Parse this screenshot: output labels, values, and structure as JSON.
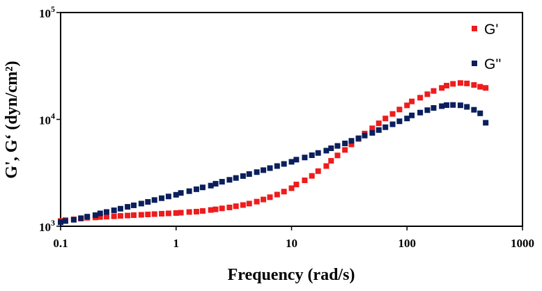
{
  "chart_data": {
    "type": "scatter",
    "title": "",
    "xlabel": "Frequency (rad/s)",
    "ylabel": "G', G‘ (dyn/cm²)",
    "x_scale": "log",
    "y_scale": "log",
    "xlim": [
      0.1,
      1000
    ],
    "ylim": [
      1000,
      100000
    ],
    "x_ticks": [
      "0.1",
      "1",
      "10",
      "100",
      "1000"
    ],
    "y_ticks": [
      {
        "value": 1000,
        "base": "10",
        "exp": "3"
      },
      {
        "value": 10000,
        "base": "10",
        "exp": "4"
      },
      {
        "value": 100000,
        "base": "10",
        "exp": "5"
      }
    ],
    "grid": false,
    "legend_position": "top-right",
    "x": [
      0.1,
      0.11,
      0.13,
      0.15,
      0.17,
      0.2,
      0.22,
      0.25,
      0.29,
      0.33,
      0.38,
      0.43,
      0.5,
      0.57,
      0.65,
      0.75,
      0.86,
      1,
      1.1,
      1.3,
      1.5,
      1.7,
      2,
      2.2,
      2.5,
      2.9,
      3.3,
      3.8,
      4.3,
      5,
      5.7,
      6.5,
      7.5,
      8.6,
      10,
      11,
      13,
      15,
      17,
      20,
      22,
      25,
      29,
      33,
      38,
      43,
      50,
      57,
      65,
      75,
      86,
      100,
      110,
      130,
      150,
      170,
      200,
      220,
      250,
      290,
      330,
      380,
      430,
      480
    ],
    "series": [
      {
        "name": "G'",
        "color": "#ee1c1c",
        "values": [
          1120,
          1140,
          1160,
          1180,
          1200,
          1210,
          1220,
          1230,
          1240,
          1250,
          1260,
          1270,
          1280,
          1290,
          1300,
          1310,
          1320,
          1330,
          1340,
          1360,
          1370,
          1390,
          1420,
          1440,
          1470,
          1500,
          1540,
          1580,
          1630,
          1700,
          1780,
          1870,
          1980,
          2110,
          2270,
          2460,
          2690,
          2960,
          3280,
          3660,
          4100,
          4600,
          5180,
          5830,
          6560,
          7370,
          8250,
          9190,
          10200,
          11250,
          12370,
          13530,
          14730,
          15960,
          17200,
          18460,
          19700,
          20700,
          21500,
          21900,
          21700,
          21000,
          20200,
          19700
        ]
      },
      {
        "name": "G''",
        "color": "#0a1f5c",
        "values": [
          1090,
          1120,
          1150,
          1190,
          1230,
          1270,
          1320,
          1360,
          1410,
          1460,
          1520,
          1570,
          1630,
          1690,
          1760,
          1830,
          1900,
          1970,
          2050,
          2130,
          2220,
          2310,
          2400,
          2500,
          2610,
          2720,
          2830,
          2950,
          3080,
          3210,
          3350,
          3500,
          3660,
          3830,
          4010,
          4200,
          4400,
          4620,
          4850,
          5100,
          5370,
          5650,
          5960,
          6300,
          6660,
          7060,
          7480,
          7950,
          8450,
          9000,
          9600,
          10200,
          10900,
          11580,
          12200,
          12800,
          13300,
          13600,
          13650,
          13550,
          13100,
          12300,
          11400,
          9300
        ]
      }
    ]
  }
}
